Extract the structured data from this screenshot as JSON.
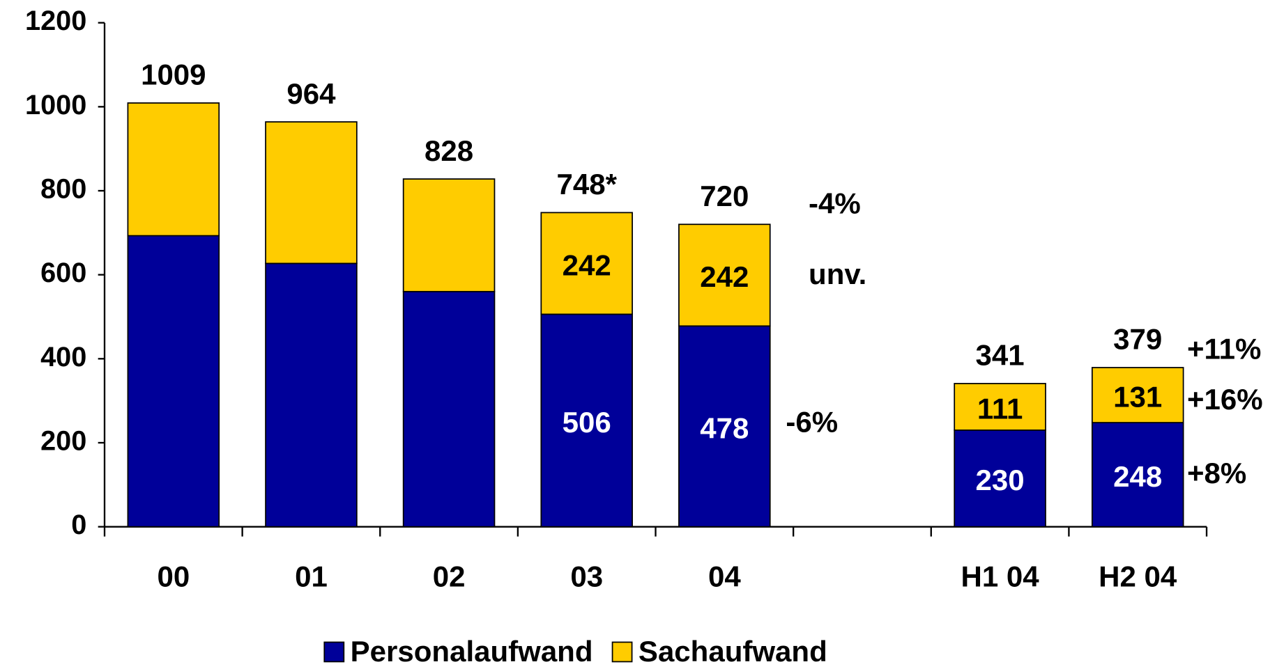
{
  "chart_data": {
    "type": "stacked_bar",
    "categories": [
      "00",
      "01",
      "02",
      "03",
      "04",
      null,
      "H1 04",
      "H2 04"
    ],
    "series": [
      {
        "name": "Personalaufwand",
        "color": "#000099",
        "values": [
          693,
          627,
          560,
          506,
          478,
          null,
          230,
          248
        ],
        "value_labels": [
          null,
          null,
          null,
          "506",
          "478",
          null,
          "230",
          "248"
        ]
      },
      {
        "name": "Sachaufwand",
        "color": "#ffcc00",
        "values": [
          316,
          337,
          268,
          242,
          242,
          null,
          111,
          131
        ],
        "value_labels": [
          null,
          null,
          null,
          "242",
          "242",
          null,
          "111",
          "131"
        ]
      }
    ],
    "totals": {
      "values": [
        1009,
        964,
        828,
        748,
        720,
        null,
        341,
        379
      ],
      "value_labels": [
        "1009",
        "964",
        "828",
        "748*",
        "720",
        null,
        "341",
        "379"
      ]
    },
    "annotations": [
      "-4%",
      "unv.",
      "-6%",
      "+11%",
      "+16%",
      "+8%"
    ],
    "ylim": [
      0,
      1200
    ],
    "yticks": [
      0,
      200,
      400,
      600,
      800,
      1000,
      1200
    ],
    "legend": "bottom"
  }
}
